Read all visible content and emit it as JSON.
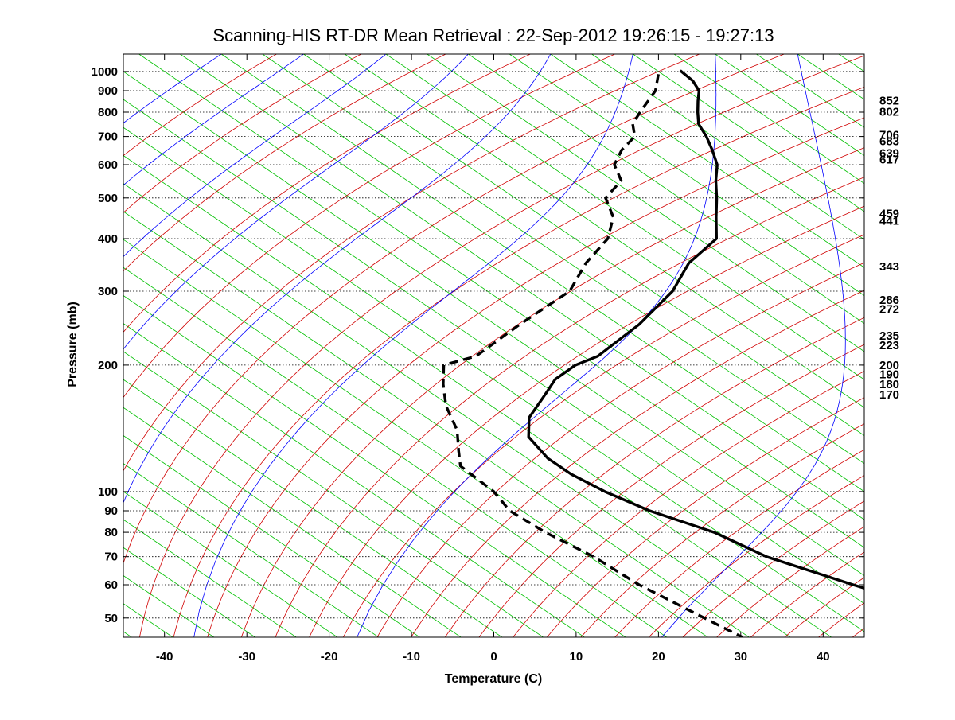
{
  "chart_data": {
    "type": "line",
    "title": "Scanning-HIS RT-DR Mean Retrieval : 22-Sep-2012 19:26:15 - 19:27:13",
    "xlabel": "Temperature (C)",
    "ylabel": "Pressure (mb)",
    "xlim": [
      -45,
      45
    ],
    "ylim": [
      1100,
      45
    ],
    "y_scale": "log",
    "x_ticks": [
      -40,
      -30,
      -20,
      -10,
      0,
      10,
      20,
      30,
      40
    ],
    "y_ticks": [
      50,
      60,
      70,
      80,
      90,
      100,
      200,
      300,
      400,
      500,
      600,
      700,
      800,
      900,
      1000
    ],
    "grid": "horizontal dotted at pressure ticks",
    "skew_per_decade": 75,
    "series": [
      {
        "name": "Temperature",
        "style": "solid",
        "color": "#000000",
        "points": [
          [
            22.8,
            1005
          ],
          [
            22.5,
            950
          ],
          [
            21.5,
            900
          ],
          [
            19.5,
            850
          ],
          [
            17.5,
            800
          ],
          [
            15.5,
            750
          ],
          [
            14.2,
            700
          ],
          [
            12.5,
            650
          ],
          [
            10.5,
            600
          ],
          [
            7.5,
            550
          ],
          [
            4.5,
            500
          ],
          [
            1.0,
            450
          ],
          [
            -2.8,
            400
          ],
          [
            -10.5,
            350
          ],
          [
            -17.5,
            300
          ],
          [
            -27.5,
            250
          ],
          [
            -38.2,
            210
          ],
          [
            -42.5,
            200
          ],
          [
            -47.5,
            185
          ],
          [
            -51.5,
            170
          ],
          [
            -57.5,
            150
          ],
          [
            -61.0,
            135
          ],
          [
            -62.5,
            120
          ],
          [
            -62.5,
            110
          ],
          [
            -61.5,
            100
          ],
          [
            -59.5,
            90
          ],
          [
            -55.5,
            80
          ],
          [
            -53.5,
            70
          ],
          [
            -48.0,
            60
          ],
          [
            -40.5,
            50
          ],
          [
            -36.5,
            45
          ]
        ]
      },
      {
        "name": "Dew point",
        "style": "dashed",
        "color": "#000000",
        "points": [
          [
            19.5,
            985
          ],
          [
            16.2,
            900
          ],
          [
            10.5,
            800
          ],
          [
            7.5,
            750
          ],
          [
            5.5,
            700
          ],
          [
            1.5,
            650
          ],
          [
            -2.0,
            600
          ],
          [
            -4.0,
            550
          ],
          [
            -9.0,
            500
          ],
          [
            -11.5,
            450
          ],
          [
            -16.0,
            400
          ],
          [
            -23.0,
            350
          ],
          [
            -30.0,
            300
          ],
          [
            -42.0,
            250
          ],
          [
            -53.0,
            210
          ],
          [
            -58.5,
            200
          ],
          [
            -62.0,
            180
          ],
          [
            -65.5,
            160
          ],
          [
            -68.5,
            140
          ],
          [
            -72.0,
            125
          ],
          [
            -74.5,
            115
          ],
          [
            -75.0,
            100
          ],
          [
            -76.5,
            90
          ],
          [
            -76.0,
            80
          ],
          [
            -74.5,
            70
          ],
          [
            -74.0,
            60
          ],
          [
            -72.0,
            50
          ],
          [
            -70.8,
            45
          ]
        ]
      }
    ],
    "right_labels": [
      "170",
      "180",
      "190",
      "200",
      "223",
      "235",
      "272",
      "286",
      "343",
      "441",
      "459",
      "617",
      "639",
      "683",
      "706",
      "802",
      "852"
    ],
    "background_lines": {
      "dry_adiabats_color": "#d00000",
      "moist_adiabats_color": "#0000ff",
      "isotherms_color": "#00c000",
      "isotherm_step": 5,
      "adiabat_step": 10
    }
  }
}
